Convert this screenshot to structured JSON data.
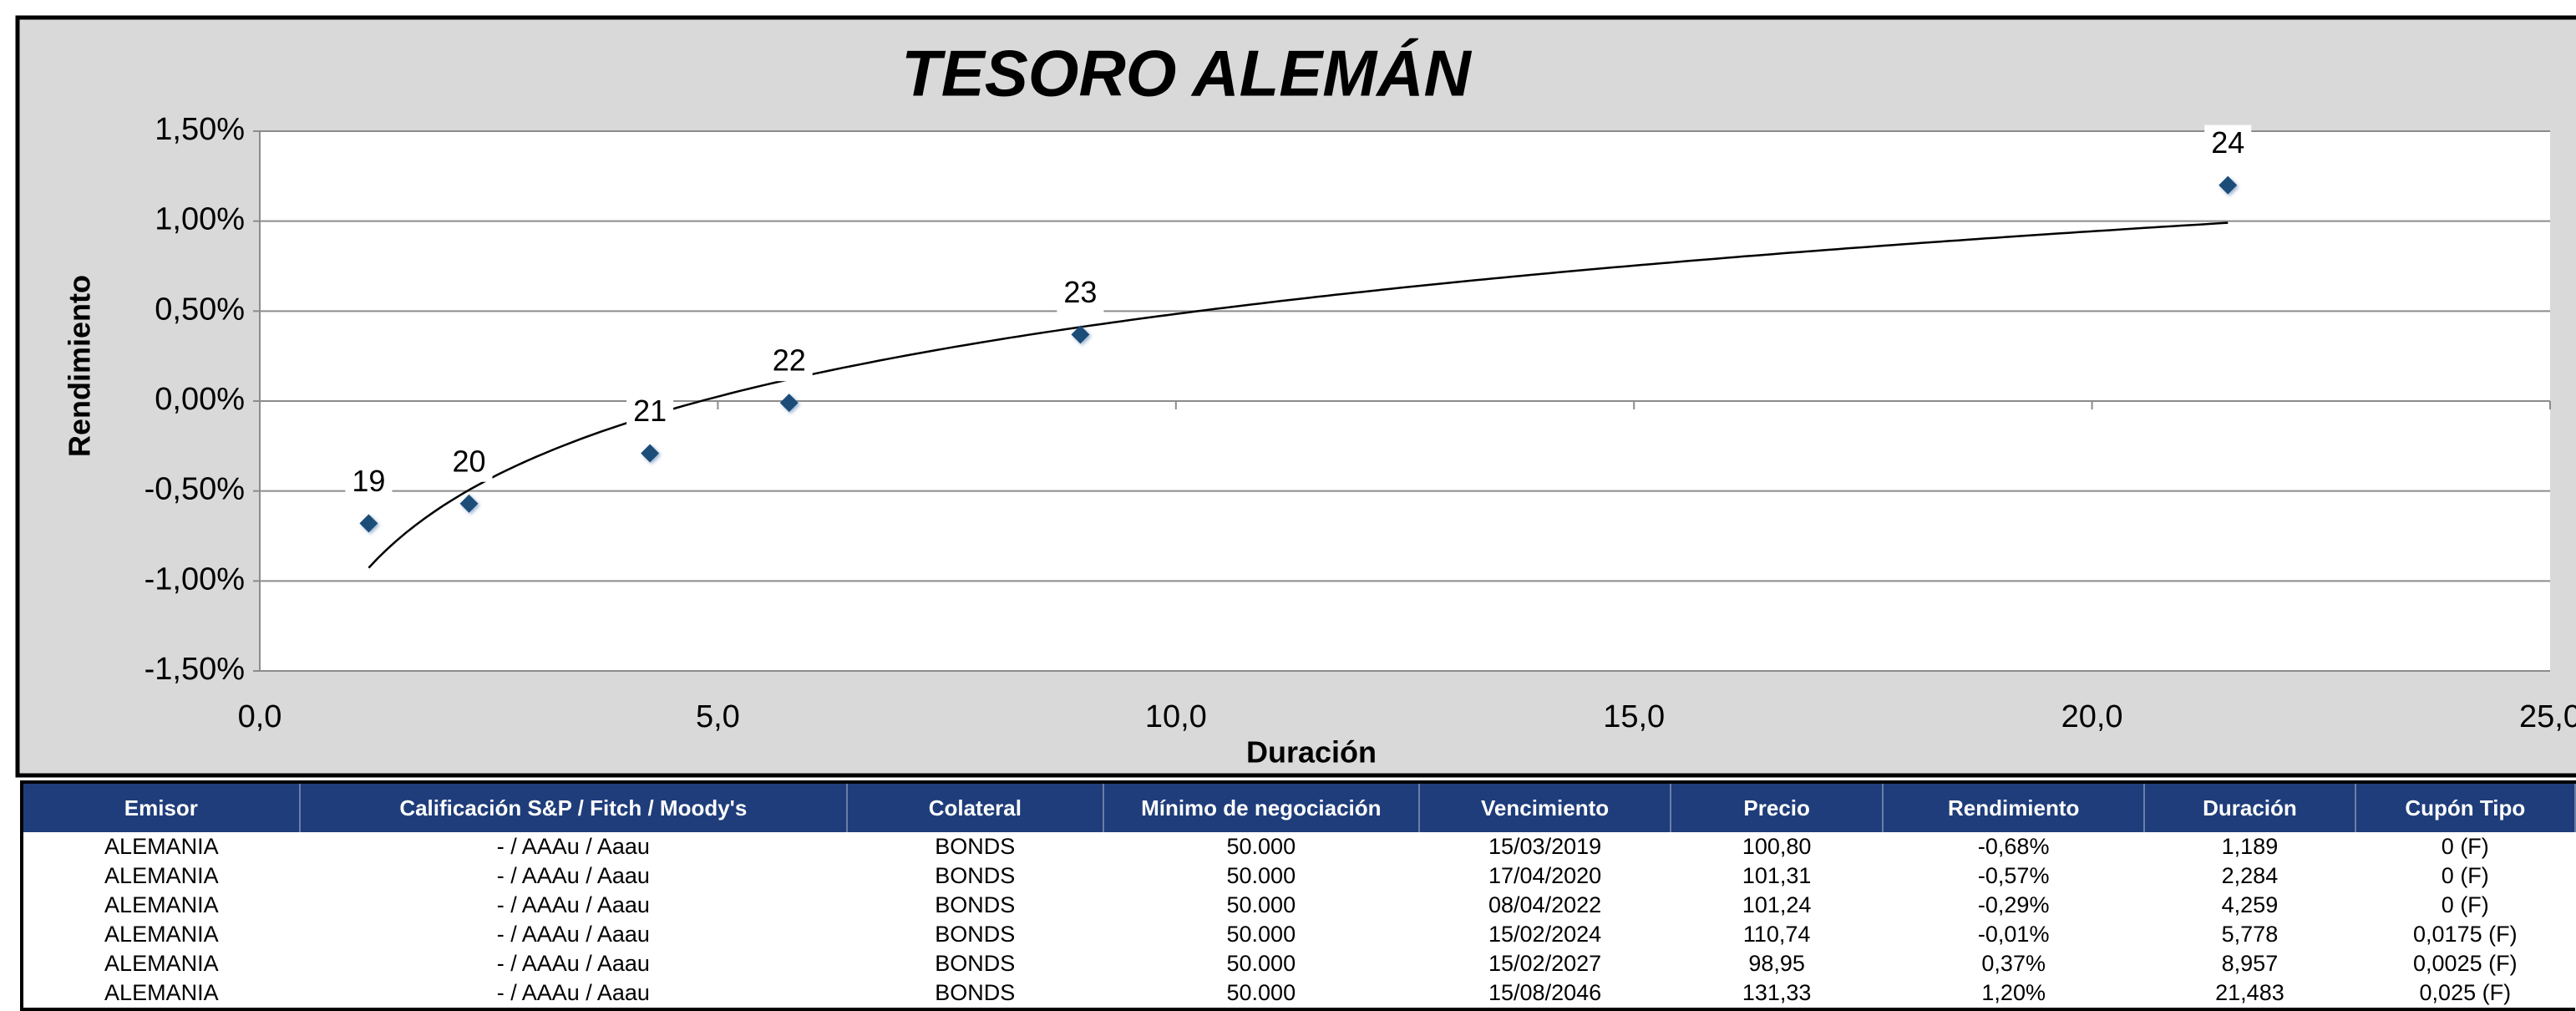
{
  "chart_data": {
    "type": "scatter",
    "title": "TESORO ALEMÁN",
    "x_label": "Duración",
    "y_label": "Rendimiento",
    "series": [
      {
        "name": "Tesoro Alemán",
        "color": "#1f4e79",
        "x": [
          1.189,
          2.284,
          4.259,
          5.778,
          8.957,
          21.483
        ],
        "values": [
          -0.68,
          -0.57,
          -0.29,
          -0.01,
          0.37,
          1.2
        ],
        "point_labels": [
          "19",
          "20",
          "21",
          "22",
          "23",
          "24"
        ]
      }
    ],
    "trendline": "logarithmic",
    "xlim": [
      0,
      25
    ],
    "xticks": [
      {
        "value": 0,
        "label": "0,0"
      },
      {
        "value": 5,
        "label": "5,0"
      },
      {
        "value": 10,
        "label": "10,0"
      },
      {
        "value": 15,
        "label": "15,0"
      },
      {
        "value": 20,
        "label": "20,0"
      },
      {
        "value": 25,
        "label": "25,0"
      }
    ],
    "ylim": [
      -1.5,
      1.5
    ],
    "yticks": [
      {
        "value": -1.5,
        "label": "-1,50%"
      },
      {
        "value": -1,
        "label": "-1,00%"
      },
      {
        "value": -0.5,
        "label": "-0,50%"
      },
      {
        "value": 0,
        "label": "0,00%"
      },
      {
        "value": 0.5,
        "label": "0,50%"
      },
      {
        "value": 1,
        "label": "1,00%"
      },
      {
        "value": 1.5,
        "label": "1,50%"
      }
    ],
    "grid": true
  },
  "table": {
    "headers": [
      "Emisor",
      "Calificación  S&P / Fitch / Moody's",
      "Colateral",
      "Mínimo de negociación",
      "Vencimiento",
      "Precio",
      "Rendimiento",
      "Duración",
      "Cupón Tipo"
    ],
    "rows": [
      [
        "ALEMANIA",
        "- / AAAu / Aaau",
        "BONDS",
        "50.000",
        "15/03/2019",
        "100,80",
        "-0,68%",
        "1,189",
        "0 (F)"
      ],
      [
        "ALEMANIA",
        "- / AAAu / Aaau",
        "BONDS",
        "50.000",
        "17/04/2020",
        "101,31",
        "-0,57%",
        "2,284",
        "0 (F)"
      ],
      [
        "ALEMANIA",
        "- / AAAu / Aaau",
        "BONDS",
        "50.000",
        "08/04/2022",
        "101,24",
        "-0,29%",
        "4,259",
        "0 (F)"
      ],
      [
        "ALEMANIA",
        "- / AAAu / Aaau",
        "BONDS",
        "50.000",
        "15/02/2024",
        "110,74",
        "-0,01%",
        "5,778",
        "0,0175 (F)"
      ],
      [
        "ALEMANIA",
        "- / AAAu / Aaau",
        "BONDS",
        "50.000",
        "15/02/2027",
        "98,95",
        "0,37%",
        "8,957",
        "0,0025 (F)"
      ],
      [
        "ALEMANIA",
        "- / AAAu / Aaau",
        "BONDS",
        "50.000",
        "15/08/2046",
        "131,33",
        "1,20%",
        "21,483",
        "0,025 (F)"
      ]
    ]
  }
}
